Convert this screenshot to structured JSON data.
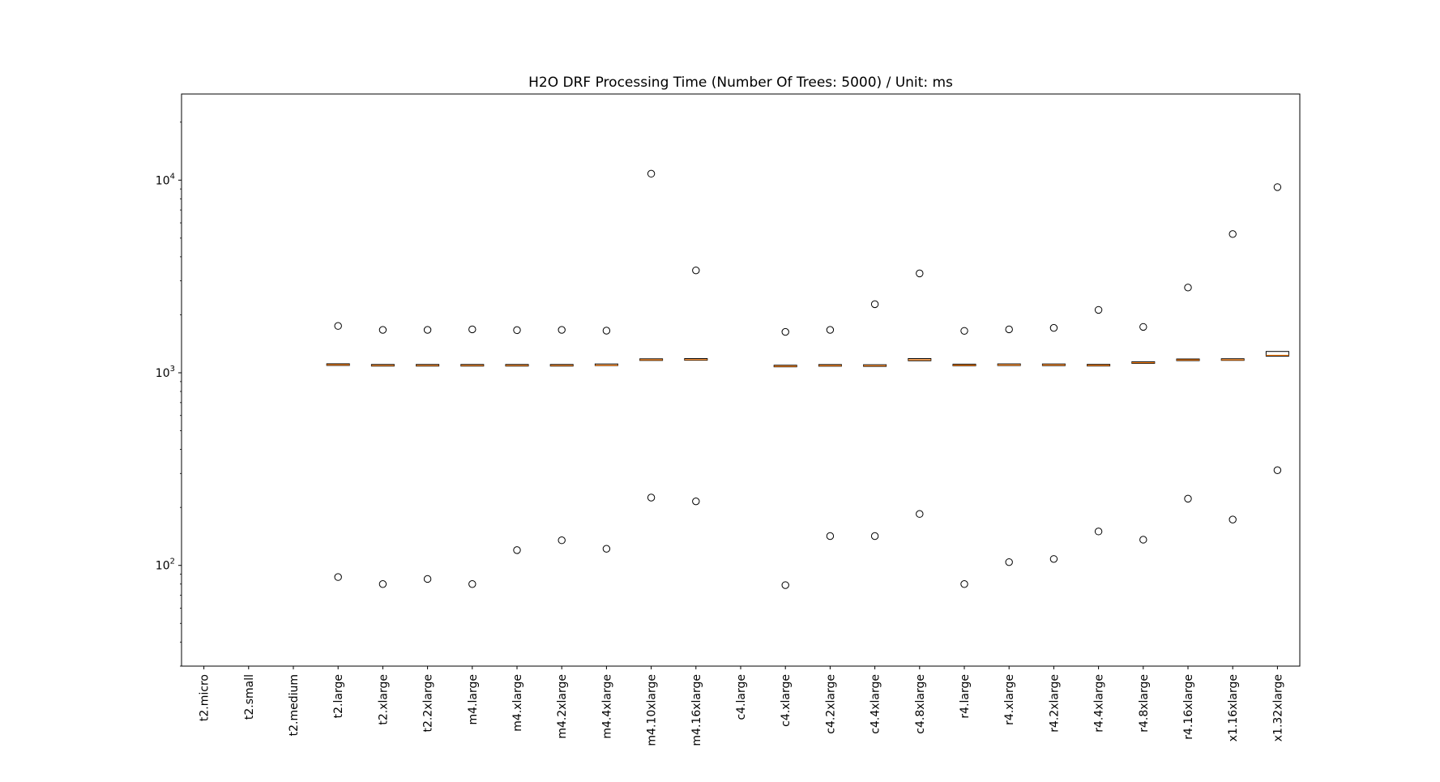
{
  "chart_data": {
    "type": "box",
    "title": "H2O DRF Processing Time (Number Of Trees: 5000) / Unit: ms",
    "xlabel": "",
    "ylabel": "",
    "yscale": "log",
    "ylim": [
      30,
      28000
    ],
    "yticks": [
      {
        "value": 100,
        "base": "10",
        "exp": "2"
      },
      {
        "value": 1000,
        "base": "10",
        "exp": "3"
      },
      {
        "value": 10000,
        "base": "10",
        "exp": "4"
      }
    ],
    "grid": false,
    "colors": {
      "median": "#ff7f0e",
      "box": "#000000",
      "flier": "#000000"
    },
    "categories": [
      "t2.micro",
      "t2.small",
      "t2.medium",
      "t2.large",
      "t2.xlarge",
      "t2.2xlarge",
      "m4.large",
      "m4.xlarge",
      "m4.2xlarge",
      "m4.4xlarge",
      "m4.10xlarge",
      "m4.16xlarge",
      "c4.large",
      "c4.xlarge",
      "c4.2xlarge",
      "c4.4xlarge",
      "c4.8xlarge",
      "r4.large",
      "r4.xlarge",
      "r4.2xlarge",
      "r4.4xlarge",
      "r4.8xlarge",
      "r4.16xlarge",
      "x1.16xlarge",
      "x1.32xlarge"
    ],
    "boxes": [
      null,
      null,
      null,
      {
        "q1": 1095,
        "median": 1100,
        "q3": 1110,
        "fliers": [
          1750,
          87
        ]
      },
      {
        "q1": 1088,
        "median": 1092,
        "q3": 1100,
        "fliers": [
          1670,
          80
        ]
      },
      {
        "q1": 1088,
        "median": 1092,
        "q3": 1100,
        "fliers": [
          1670,
          85
        ]
      },
      {
        "q1": 1088,
        "median": 1092,
        "q3": 1100,
        "fliers": [
          1680,
          80
        ]
      },
      {
        "q1": 1088,
        "median": 1092,
        "q3": 1100,
        "fliers": [
          1665,
          120
        ]
      },
      {
        "q1": 1088,
        "median": 1092,
        "q3": 1100,
        "fliers": [
          1670,
          135
        ]
      },
      {
        "q1": 1090,
        "median": 1095,
        "q3": 1110,
        "fliers": [
          1655,
          122
        ]
      },
      {
        "q1": 1160,
        "median": 1168,
        "q3": 1180,
        "fliers": [
          10800,
          225
        ]
      },
      {
        "q1": 1162,
        "median": 1170,
        "q3": 1185,
        "fliers": [
          3400,
          215
        ]
      },
      null,
      {
        "q1": 1078,
        "median": 1082,
        "q3": 1090,
        "fliers": [
          1630,
          79
        ]
      },
      {
        "q1": 1085,
        "median": 1090,
        "q3": 1100,
        "fliers": [
          1670,
          142
        ]
      },
      {
        "q1": 1082,
        "median": 1088,
        "q3": 1098,
        "fliers": [
          2270,
          142
        ]
      },
      {
        "q1": 1155,
        "median": 1168,
        "q3": 1185,
        "fliers": [
          3280,
          185
        ]
      },
      {
        "q1": 1090,
        "median": 1095,
        "q3": 1105,
        "fliers": [
          1650,
          80
        ]
      },
      {
        "q1": 1092,
        "median": 1098,
        "q3": 1110,
        "fliers": [
          1680,
          104
        ]
      },
      {
        "q1": 1092,
        "median": 1098,
        "q3": 1108,
        "fliers": [
          1710,
          108
        ]
      },
      {
        "q1": 1090,
        "median": 1094,
        "q3": 1100,
        "fliers": [
          2120,
          150
        ]
      },
      {
        "q1": 1120,
        "median": 1128,
        "q3": 1140,
        "fliers": [
          1730,
          136
        ]
      },
      {
        "q1": 1160,
        "median": 1166,
        "q3": 1175,
        "fliers": [
          2770,
          222
        ]
      },
      {
        "q1": 1160,
        "median": 1168,
        "q3": 1182,
        "fliers": [
          5250,
          173
        ]
      },
      {
        "q1": 1220,
        "median": 1232,
        "q3": 1290,
        "fliers": [
          9200,
          312
        ]
      }
    ]
  }
}
